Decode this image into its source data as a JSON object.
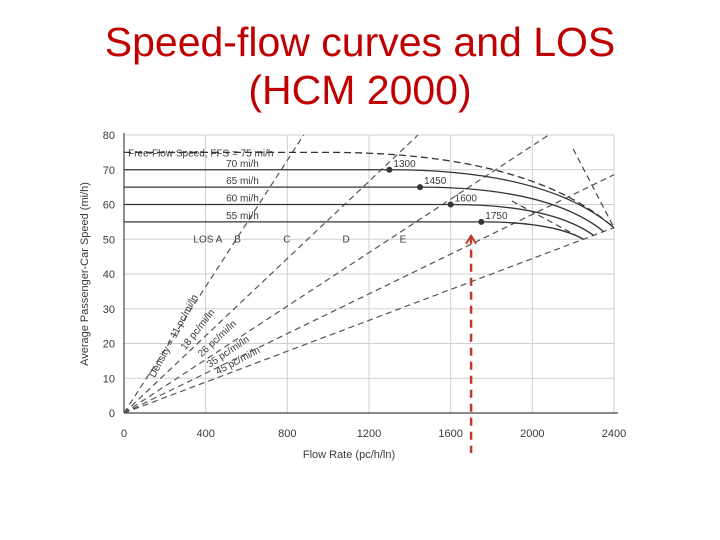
{
  "slide": {
    "title_line1": "Speed-flow curves and LOS",
    "title_line2": "(HCM 2000)"
  },
  "chart_data": {
    "type": "line",
    "xlabel": "Flow Rate (pc/h/ln)",
    "ylabel": "Average Passenger-Car Speed (mi/h)",
    "xlim": [
      0,
      2400
    ],
    "ylim": [
      0,
      80
    ],
    "x_ticks": [
      0,
      400,
      800,
      1200,
      1600,
      2000,
      2400
    ],
    "y_ticks": [
      0,
      10,
      20,
      30,
      40,
      50,
      60,
      70,
      80
    ],
    "grid": true,
    "ffs_header": "Free-Flow Speed, FFS = 75 mi/h",
    "series": [
      {
        "name": "75 mi/h",
        "ffs": 75,
        "breakpoint": 1000,
        "capacity": 2400,
        "speed_at_capacity": 53.3,
        "style": "dashed",
        "breakpoint_label": ""
      },
      {
        "name": "70 mi/h",
        "ffs": 70,
        "breakpoint": 1300,
        "capacity": 2400,
        "speed_at_capacity": 53.3,
        "style": "solid",
        "breakpoint_label": "1300"
      },
      {
        "name": "65 mi/h",
        "ffs": 65,
        "breakpoint": 1450,
        "capacity": 2350,
        "speed_at_capacity": 52.2,
        "style": "solid",
        "breakpoint_label": "1450"
      },
      {
        "name": "60 mi/h",
        "ffs": 60,
        "breakpoint": 1600,
        "capacity": 2300,
        "speed_at_capacity": 51.1,
        "style": "solid",
        "breakpoint_label": "1600"
      },
      {
        "name": "55 mi/h",
        "ffs": 55,
        "breakpoint": 1750,
        "capacity": 2250,
        "speed_at_capacity": 50.0,
        "style": "solid",
        "breakpoint_label": "1750"
      }
    ],
    "density_lines": [
      {
        "density": 11,
        "label": "Density = 11 pc/mi/ln"
      },
      {
        "density": 18,
        "label": "18 pc/mi/ln"
      },
      {
        "density": 26,
        "label": "26 pc/mi/ln"
      },
      {
        "density": 35,
        "label": "35 pc/mi/ln"
      },
      {
        "density": 45,
        "label": "45 pc/mi/ln"
      }
    ],
    "los_labels": [
      {
        "label": "LOS A",
        "x": 340,
        "y": 49
      },
      {
        "label": "B",
        "x": 540,
        "y": 49
      },
      {
        "label": "C",
        "x": 780,
        "y": 49
      },
      {
        "label": "D",
        "x": 1070,
        "y": 49
      },
      {
        "label": "E",
        "x": 1350,
        "y": 49
      }
    ],
    "annotation": {
      "x": 1700,
      "color": "#c0392b"
    }
  }
}
